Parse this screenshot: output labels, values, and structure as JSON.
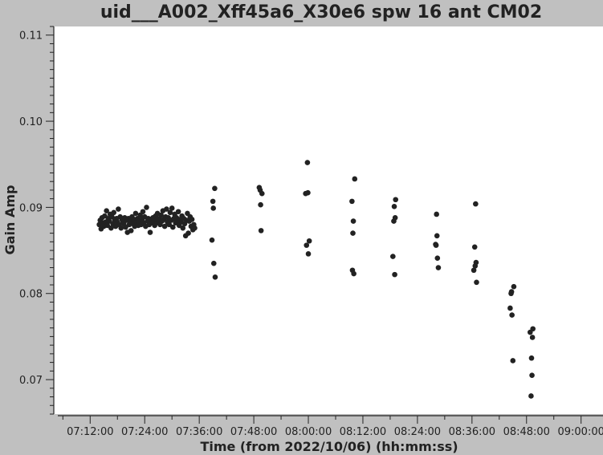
{
  "chart_data": {
    "type": "scatter",
    "title": "uid___A002_Xff45a6_X30e6 spw 16 ant CM02",
    "xlabel": "Time (from 2022/10/06) (hh:mm:ss)",
    "ylabel": "Gain Amp",
    "xlim": [
      "07:04:00",
      "09:05:00"
    ],
    "ylim": [
      0.066,
      0.111
    ],
    "x_ticks": [
      "07:12:00",
      "07:24:00",
      "07:36:00",
      "07:48:00",
      "08:00:00",
      "08:12:00",
      "08:24:00",
      "08:36:00",
      "08:48:00",
      "09:00:00"
    ],
    "y_ticks": [
      "0.07",
      "0.08",
      "0.09",
      "0.10",
      "0.11"
    ],
    "grid": false,
    "legend": "none",
    "color": "#222222",
    "series": [
      {
        "values": [
          {
            "x": "07:14:00",
            "y": 0.088
          },
          {
            "x": "07:14:12",
            "y": 0.0885
          },
          {
            "x": "07:14:24",
            "y": 0.0875
          },
          {
            "x": "07:14:36",
            "y": 0.0888
          },
          {
            "x": "07:14:48",
            "y": 0.0882
          },
          {
            "x": "07:15:00",
            "y": 0.0878
          },
          {
            "x": "07:15:12",
            "y": 0.089
          },
          {
            "x": "07:15:24",
            "y": 0.0883
          },
          {
            "x": "07:15:36",
            "y": 0.0896
          },
          {
            "x": "07:15:48",
            "y": 0.0879
          },
          {
            "x": "07:16:00",
            "y": 0.0887
          },
          {
            "x": "07:16:12",
            "y": 0.0884
          },
          {
            "x": "07:16:24",
            "y": 0.0892
          },
          {
            "x": "07:16:36",
            "y": 0.0876
          },
          {
            "x": "07:16:48",
            "y": 0.0889
          },
          {
            "x": "07:17:00",
            "y": 0.0881
          },
          {
            "x": "07:17:12",
            "y": 0.0894
          },
          {
            "x": "07:17:24",
            "y": 0.0885
          },
          {
            "x": "07:17:36",
            "y": 0.0878
          },
          {
            "x": "07:17:48",
            "y": 0.0887
          },
          {
            "x": "07:18:00",
            "y": 0.0883
          },
          {
            "x": "07:18:12",
            "y": 0.0898
          },
          {
            "x": "07:18:24",
            "y": 0.088
          },
          {
            "x": "07:18:36",
            "y": 0.0889
          },
          {
            "x": "07:18:48",
            "y": 0.0876
          },
          {
            "x": "07:19:00",
            "y": 0.0886
          },
          {
            "x": "07:19:12",
            "y": 0.0884
          },
          {
            "x": "07:19:24",
            "y": 0.0881
          },
          {
            "x": "07:19:36",
            "y": 0.0888
          },
          {
            "x": "07:19:48",
            "y": 0.0877
          },
          {
            "x": "07:20:00",
            "y": 0.0885
          },
          {
            "x": "07:20:12",
            "y": 0.0871
          },
          {
            "x": "07:20:24",
            "y": 0.0887
          },
          {
            "x": "07:20:36",
            "y": 0.088
          },
          {
            "x": "07:20:48",
            "y": 0.0884
          },
          {
            "x": "07:21:00",
            "y": 0.0873
          },
          {
            "x": "07:21:12",
            "y": 0.0889
          },
          {
            "x": "07:21:24",
            "y": 0.0881
          },
          {
            "x": "07:21:36",
            "y": 0.0886
          },
          {
            "x": "07:21:48",
            "y": 0.0878
          },
          {
            "x": "07:22:00",
            "y": 0.0893
          },
          {
            "x": "07:22:12",
            "y": 0.0883
          },
          {
            "x": "07:22:24",
            "y": 0.0887
          },
          {
            "x": "07:22:36",
            "y": 0.0879
          },
          {
            "x": "07:22:48",
            "y": 0.0884
          },
          {
            "x": "07:23:00",
            "y": 0.0891
          },
          {
            "x": "07:23:12",
            "y": 0.088
          },
          {
            "x": "07:23:24",
            "y": 0.0886
          },
          {
            "x": "07:23:36",
            "y": 0.0895
          },
          {
            "x": "07:23:48",
            "y": 0.0882
          },
          {
            "x": "07:24:00",
            "y": 0.0889
          },
          {
            "x": "07:24:12",
            "y": 0.0878
          },
          {
            "x": "07:24:24",
            "y": 0.09
          },
          {
            "x": "07:24:36",
            "y": 0.0884
          },
          {
            "x": "07:24:48",
            "y": 0.0887
          },
          {
            "x": "07:25:00",
            "y": 0.088
          },
          {
            "x": "07:25:12",
            "y": 0.0871
          },
          {
            "x": "07:25:24",
            "y": 0.0886
          },
          {
            "x": "07:25:36",
            "y": 0.0882
          },
          {
            "x": "07:25:48",
            "y": 0.0888
          },
          {
            "x": "07:26:00",
            "y": 0.0884
          },
          {
            "x": "07:26:12",
            "y": 0.0879
          },
          {
            "x": "07:26:24",
            "y": 0.089
          },
          {
            "x": "07:26:36",
            "y": 0.0885
          },
          {
            "x": "07:26:48",
            "y": 0.0893
          },
          {
            "x": "07:27:00",
            "y": 0.0882
          },
          {
            "x": "07:27:12",
            "y": 0.0887
          },
          {
            "x": "07:27:24",
            "y": 0.088
          },
          {
            "x": "07:27:36",
            "y": 0.0891
          },
          {
            "x": "07:27:48",
            "y": 0.0884
          },
          {
            "x": "07:28:00",
            "y": 0.0896
          },
          {
            "x": "07:28:12",
            "y": 0.0886
          },
          {
            "x": "07:28:24",
            "y": 0.0878
          },
          {
            "x": "07:28:36",
            "y": 0.0889
          },
          {
            "x": "07:28:48",
            "y": 0.0898
          },
          {
            "x": "07:29:00",
            "y": 0.0883
          },
          {
            "x": "07:29:12",
            "y": 0.0888
          },
          {
            "x": "07:29:24",
            "y": 0.088
          },
          {
            "x": "07:29:36",
            "y": 0.0894
          },
          {
            "x": "07:29:48",
            "y": 0.0885
          },
          {
            "x": "07:30:00",
            "y": 0.0899
          },
          {
            "x": "07:30:12",
            "y": 0.0877
          },
          {
            "x": "07:30:24",
            "y": 0.0887
          },
          {
            "x": "07:30:36",
            "y": 0.0892
          },
          {
            "x": "07:30:48",
            "y": 0.0882
          },
          {
            "x": "07:31:00",
            "y": 0.0888
          },
          {
            "x": "07:31:12",
            "y": 0.0884
          },
          {
            "x": "07:31:24",
            "y": 0.0895
          },
          {
            "x": "07:31:36",
            "y": 0.0879
          },
          {
            "x": "07:31:48",
            "y": 0.0886
          },
          {
            "x": "07:32:00",
            "y": 0.0883
          },
          {
            "x": "07:32:12",
            "y": 0.089
          },
          {
            "x": "07:32:24",
            "y": 0.0876
          },
          {
            "x": "07:32:36",
            "y": 0.0887
          },
          {
            "x": "07:32:48",
            "y": 0.0881
          },
          {
            "x": "07:33:00",
            "y": 0.0867
          },
          {
            "x": "07:33:12",
            "y": 0.0885
          },
          {
            "x": "07:33:24",
            "y": 0.0893
          },
          {
            "x": "07:33:36",
            "y": 0.087
          },
          {
            "x": "07:33:48",
            "y": 0.0884
          },
          {
            "x": "07:34:00",
            "y": 0.0889
          },
          {
            "x": "07:34:12",
            "y": 0.0878
          },
          {
            "x": "07:34:24",
            "y": 0.0886
          },
          {
            "x": "07:34:36",
            "y": 0.0874
          },
          {
            "x": "07:34:48",
            "y": 0.088
          },
          {
            "x": "07:35:00",
            "y": 0.0876
          },
          {
            "x": "07:38:48",
            "y": 0.0862
          },
          {
            "x": "07:39:00",
            "y": 0.0907
          },
          {
            "x": "07:39:06",
            "y": 0.0899
          },
          {
            "x": "07:39:12",
            "y": 0.0835
          },
          {
            "x": "07:39:24",
            "y": 0.0922
          },
          {
            "x": "07:39:30",
            "y": 0.0819
          },
          {
            "x": "07:49:12",
            "y": 0.0923
          },
          {
            "x": "07:49:24",
            "y": 0.092
          },
          {
            "x": "07:49:30",
            "y": 0.0903
          },
          {
            "x": "07:49:36",
            "y": 0.0873
          },
          {
            "x": "07:49:48",
            "y": 0.0916
          },
          {
            "x": "07:59:24",
            "y": 0.0916
          },
          {
            "x": "07:59:36",
            "y": 0.0856
          },
          {
            "x": "07:59:48",
            "y": 0.0952
          },
          {
            "x": "07:59:54",
            "y": 0.0917
          },
          {
            "x": "08:00:00",
            "y": 0.0846
          },
          {
            "x": "08:00:12",
            "y": 0.0861
          },
          {
            "x": "08:09:36",
            "y": 0.0907
          },
          {
            "x": "08:09:42",
            "y": 0.0827
          },
          {
            "x": "08:09:48",
            "y": 0.087
          },
          {
            "x": "08:09:54",
            "y": 0.0884
          },
          {
            "x": "08:10:00",
            "y": 0.0823
          },
          {
            "x": "08:10:12",
            "y": 0.0933
          },
          {
            "x": "08:18:36",
            "y": 0.0843
          },
          {
            "x": "08:18:48",
            "y": 0.0884
          },
          {
            "x": "08:18:54",
            "y": 0.0901
          },
          {
            "x": "08:19:00",
            "y": 0.0822
          },
          {
            "x": "08:19:06",
            "y": 0.0888
          },
          {
            "x": "08:19:12",
            "y": 0.0909
          },
          {
            "x": "08:28:00",
            "y": 0.0857
          },
          {
            "x": "08:28:06",
            "y": 0.0856
          },
          {
            "x": "08:28:12",
            "y": 0.0892
          },
          {
            "x": "08:28:18",
            "y": 0.0867
          },
          {
            "x": "08:28:24",
            "y": 0.0841
          },
          {
            "x": "08:28:36",
            "y": 0.083
          },
          {
            "x": "08:36:24",
            "y": 0.0827
          },
          {
            "x": "08:36:36",
            "y": 0.0854
          },
          {
            "x": "08:36:42",
            "y": 0.0832
          },
          {
            "x": "08:36:48",
            "y": 0.0904
          },
          {
            "x": "08:36:54",
            "y": 0.0836
          },
          {
            "x": "08:37:00",
            "y": 0.0813
          },
          {
            "x": "08:44:24",
            "y": 0.0783
          },
          {
            "x": "08:44:36",
            "y": 0.08
          },
          {
            "x": "08:44:42",
            "y": 0.0802
          },
          {
            "x": "08:44:48",
            "y": 0.0775
          },
          {
            "x": "08:45:00",
            "y": 0.0722
          },
          {
            "x": "08:45:12",
            "y": 0.0808
          },
          {
            "x": "08:48:48",
            "y": 0.0755
          },
          {
            "x": "08:49:00",
            "y": 0.0681
          },
          {
            "x": "08:49:06",
            "y": 0.0725
          },
          {
            "x": "08:49:12",
            "y": 0.0705
          },
          {
            "x": "08:49:18",
            "y": 0.0749
          },
          {
            "x": "08:49:24",
            "y": 0.0759
          }
        ]
      }
    ]
  }
}
